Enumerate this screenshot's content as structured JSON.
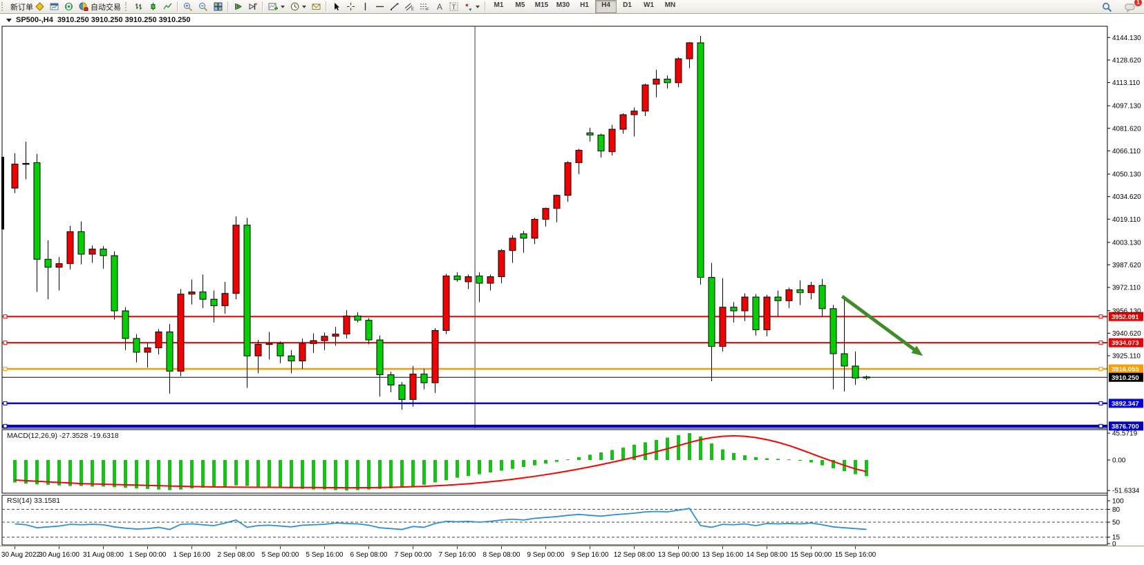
{
  "toolbar": {
    "new_order_label": "新订单",
    "autotrade_label": "自动交易",
    "timeframes": [
      "M1",
      "M5",
      "M15",
      "M30",
      "H1",
      "H4",
      "D1",
      "W1",
      "MN"
    ],
    "active_timeframe": "H4",
    "chat_badge_count": "1",
    "icons": [
      "diamond-icon",
      "new-chart-icon",
      "signal-icon",
      "autotrade-icon",
      "bar-chart-style-icon",
      "candlestick-style-icon",
      "line-chart-style-icon",
      "zoom-in-icon",
      "zoom-out-icon",
      "tile-windows-icon",
      "step-forward-icon",
      "step-end-icon",
      "add-indicator-icon",
      "periods-clock-icon",
      "templates-icon",
      "cursor-icon",
      "crosshair-icon",
      "vertical-line-icon",
      "horizontal-line-icon",
      "trendline-icon",
      "equidistant-channel-icon",
      "fibonacci-icon",
      "text-icon",
      "text-label-icon",
      "arrows-icon",
      "search-icon",
      "chat-icon"
    ]
  },
  "chart": {
    "title_symbol": "SP500-,H4",
    "title_quotes": "3910.250 3910.250 3910.250 3910.250"
  },
  "chart_data": {
    "type": "candlestick",
    "symbol": "SP500-",
    "timeframe": "H4",
    "note": "Chinese color convention: red = bullish (close>=open), green = bearish",
    "bull_color": "#f20000",
    "bear_color": "#00cf00",
    "ylim": [
      3875.1,
      4150.9
    ],
    "x_labels": [
      "30 Aug 2022",
      "30 Aug 16:00",
      "31 Aug 08:00",
      "1 Sep 00:00",
      "1 Sep 16:00",
      "2 Sep 08:00",
      "5 Sep 00:00",
      "5 Sep 16:00",
      "6 Sep 08:00",
      "7 Sep 00:00",
      "7 Sep 16:00",
      "8 Sep 08:00",
      "9 Sep 00:00",
      "9 Sep 16:00",
      "12 Sep 08:00",
      "13 Sep 00:00",
      "13 Sep 16:00",
      "14 Sep 08:00",
      "15 Sep 00:00",
      "15 Sep 16:00"
    ],
    "x_label_bars": [
      0,
      4,
      8,
      12,
      16,
      20,
      24,
      28,
      32,
      36,
      40,
      44,
      48,
      52,
      56,
      60,
      64,
      68,
      72,
      76
    ],
    "candles": [
      [
        4040.5,
        4064.5,
        4037.0,
        4057.0
      ],
      [
        4057.0,
        4072.5,
        4046.5,
        4057.5
      ],
      [
        4058.0,
        4064.0,
        3969.0,
        3991.5
      ],
      [
        3991.5,
        4004.5,
        3964.0,
        3986.0
      ],
      [
        3986.0,
        3993.0,
        3970.0,
        3988.5
      ],
      [
        3988.5,
        4014.5,
        3984.5,
        4010.5
      ],
      [
        4010.5,
        4017.5,
        3988.0,
        3995.0
      ],
      [
        3995.0,
        4001.0,
        3989.0,
        3998.5
      ],
      [
        3998.5,
        4000.5,
        3985.0,
        3994.0
      ],
      [
        3994.0,
        3997.0,
        3950.0,
        3956.0
      ],
      [
        3956.0,
        3958.5,
        3929.0,
        3937.0
      ],
      [
        3937.0,
        3940.0,
        3920.5,
        3927.5
      ],
      [
        3927.5,
        3934.0,
        3917.0,
        3930.5
      ],
      [
        3930.5,
        3943.5,
        3926.0,
        3941.5
      ],
      [
        3941.5,
        3947.0,
        3899.0,
        3914.5
      ],
      [
        3914.5,
        3971.0,
        3911.0,
        3967.5
      ],
      [
        3967.5,
        3977.5,
        3960.5,
        3969.0
      ],
      [
        3969.0,
        3981.0,
        3958.0,
        3964.0
      ],
      [
        3964.0,
        3970.0,
        3948.0,
        3959.5
      ],
      [
        3959.5,
        3976.0,
        3954.0,
        3968.0
      ],
      [
        3968.0,
        4021.0,
        3964.0,
        4015.0
      ],
      [
        4015.0,
        4020.0,
        3903.0,
        3925.0
      ],
      [
        3925.0,
        3936.0,
        3913.0,
        3933.0
      ],
      [
        3933.0,
        3941.5,
        3922.5,
        3933.5
      ],
      [
        3933.5,
        3935.0,
        3920.0,
        3925.0
      ],
      [
        3925.0,
        3929.0,
        3913.0,
        3921.5
      ],
      [
        3921.5,
        3937.0,
        3916.0,
        3933.5
      ],
      [
        3933.5,
        3940.5,
        3927.0,
        3935.5
      ],
      [
        3935.5,
        3941.0,
        3929.0,
        3938.5
      ],
      [
        3938.5,
        3945.0,
        3932.0,
        3940.0
      ],
      [
        3940.0,
        3956.5,
        3937.0,
        3952.5
      ],
      [
        3952.5,
        3955.0,
        3948.0,
        3949.5
      ],
      [
        3949.5,
        3951.0,
        3933.0,
        3936.0
      ],
      [
        3936.0,
        3939.0,
        3897.0,
        3912.0
      ],
      [
        3912.0,
        3914.0,
        3900.0,
        3905.0
      ],
      [
        3905.0,
        3907.0,
        3888.0,
        3895.0
      ],
      [
        3895.0,
        3918.0,
        3890.0,
        3912.5
      ],
      [
        3912.5,
        3916.0,
        3902.0,
        3906.5
      ],
      [
        3906.5,
        3944.0,
        3899.5,
        3942.5
      ],
      [
        3942.5,
        3981.5,
        3940.0,
        3980.0
      ],
      [
        3980.0,
        3982.5,
        3976.0,
        3977.5
      ],
      [
        3976.0,
        3981.0,
        3971.0,
        3979.5
      ],
      [
        3980.0,
        3982.5,
        3962.0,
        3975.0
      ],
      [
        3975.0,
        3981.0,
        3970.0,
        3979.5
      ],
      [
        3979.5,
        3998.5,
        3975.0,
        3997.5
      ],
      [
        3997.5,
        4008.0,
        3989.0,
        4006.0
      ],
      [
        4009.0,
        4011.0,
        3996.0,
        4006.0
      ],
      [
        4006.0,
        4020.0,
        4002.0,
        4019.0
      ],
      [
        4019.0,
        4027.0,
        4014.0,
        4026.5
      ],
      [
        4026.5,
        4036.0,
        4017.0,
        4035.5
      ],
      [
        4035.5,
        4059.0,
        4031.0,
        4058.0
      ],
      [
        4058.0,
        4067.5,
        4050.0,
        4066.5
      ],
      [
        4078.5,
        4082.0,
        4072.5,
        4077.0
      ],
      [
        4077.0,
        4078.0,
        4061.5,
        4066.0
      ],
      [
        4065.5,
        4084.0,
        4063.0,
        4081.0
      ],
      [
        4081.0,
        4092.0,
        4078.0,
        4091.0
      ],
      [
        4091.0,
        4096.0,
        4076.0,
        4093.5
      ],
      [
        4093.5,
        4112.5,
        4090.0,
        4111.5
      ],
      [
        4112.0,
        4122.0,
        4103.0,
        4115.5
      ],
      [
        4115.5,
        4118.0,
        4109.0,
        4113.0
      ],
      [
        4113.0,
        4130.5,
        4110.0,
        4129.5
      ],
      [
        4129.5,
        4141.0,
        4123.0,
        4140.5
      ],
      [
        4140.5,
        4145.2,
        3974.0,
        3979.0
      ],
      [
        3979.0,
        3989.0,
        3907.5,
        3931.5
      ],
      [
        3931.5,
        3978.5,
        3928.0,
        3958.5
      ],
      [
        3958.5,
        3962.0,
        3948.0,
        3956.0
      ],
      [
        3956.0,
        3968.0,
        3949.0,
        3965.5
      ],
      [
        3965.5,
        3967.5,
        3939.0,
        3943.0
      ],
      [
        3943.0,
        3967.0,
        3938.5,
        3965.5
      ],
      [
        3965.5,
        3970.0,
        3952.0,
        3963.0
      ],
      [
        3963.0,
        3972.0,
        3958.0,
        3970.5
      ],
      [
        3970.5,
        3977.0,
        3960.0,
        3968.5
      ],
      [
        3968.5,
        3976.0,
        3964.0,
        3973.5
      ],
      [
        3973.5,
        3978.0,
        3952.0,
        3957.5
      ],
      [
        3957.5,
        3960.0,
        3902.0,
        3926.5
      ],
      [
        3926.5,
        3964.0,
        3900.5,
        3918.0
      ],
      [
        3918.0,
        3928.0,
        3905.0,
        3909.8
      ],
      [
        3910.5,
        3911.5,
        3908.5,
        3910.25
      ]
    ],
    "left_edge_bar": {
      "high": 4062,
      "low": 4012
    },
    "price_axis": {
      "ticks": [
        "4144.130",
        "4128.620",
        "4113.110",
        "4097.130",
        "4081.620",
        "4066.110",
        "4050.130",
        "4034.620",
        "4019.110",
        "4003.130",
        "3987.620",
        "3972.110",
        "3956.130",
        "3940.620",
        "3925.110"
      ],
      "tick_values": [
        4144.13,
        4128.62,
        4113.11,
        4097.13,
        4081.62,
        4066.11,
        4050.13,
        4034.62,
        4019.11,
        4003.13,
        3987.62,
        3972.11,
        3956.13,
        3940.62,
        3925.11
      ]
    },
    "hlines": [
      {
        "price": 3952.091,
        "label": "3952.091",
        "color": "#f50000",
        "width": 2,
        "label_bg": "#e80000",
        "handles": true
      },
      {
        "price": 3934.073,
        "label": "3934.073",
        "color": "#f50000",
        "width": 2,
        "label_bg": "#e80000",
        "handles": true
      },
      {
        "price": 3916.055,
        "label": "3916.055",
        "color": "#ff9d00",
        "width": 2.5,
        "label_bg": "#ff9d00",
        "handles": true
      },
      {
        "price": 3910.25,
        "label": "3910.250",
        "color": "#000000",
        "width": 1,
        "label_bg": "#000000",
        "handles": false
      },
      {
        "price": 3892.347,
        "label": "3892.347",
        "color": "#0000e6",
        "width": 2.5,
        "label_bg": "#0000e6",
        "handles": true
      },
      {
        "price": 3876.7,
        "label": "3876.700",
        "color": "#0000c8",
        "width": 4,
        "label_bg": "#0000c8",
        "handles": true
      }
    ],
    "vline": {
      "bar_index": 41.6
    },
    "arrow": {
      "start": {
        "bar": 74.8,
        "price": 3966
      },
      "end": {
        "bar": 82.1,
        "price": 3925
      },
      "color": "#3f8c28"
    },
    "macd": {
      "label": "MACD(12,26,9)",
      "values": "-27.3528 -19.6318",
      "main_value": -27.3528,
      "signal_value": -19.6318,
      "scale_ticks": [
        "45.5719",
        "0.00",
        "-51.6334"
      ],
      "scale_values": [
        45.5719,
        0,
        -51.6334
      ],
      "histogram": [
        -38,
        -40,
        -41,
        -42,
        -43,
        -44,
        -44,
        -45,
        -45,
        -46,
        -47,
        -48,
        -49,
        -50,
        -51,
        -50,
        -48,
        -47,
        -46,
        -45,
        -43,
        -44,
        -45,
        -46,
        -47,
        -48,
        -49,
        -50,
        -50,
        -51,
        -51.6,
        -51,
        -50,
        -49,
        -48,
        -47,
        -45,
        -42,
        -38,
        -34,
        -30,
        -27,
        -24,
        -21,
        -18,
        -15,
        -12,
        -9,
        -6,
        -3,
        1,
        5,
        9,
        13,
        17,
        21,
        26,
        30,
        34,
        38,
        42,
        45.57,
        40,
        28,
        18,
        12,
        8,
        5,
        3,
        2,
        1,
        0,
        -4,
        -9,
        -14,
        -19,
        -24,
        -27.35
      ],
      "signal": [
        -34,
        -35,
        -36,
        -37,
        -38,
        -39,
        -40,
        -40.5,
        -41,
        -41.5,
        -42,
        -42.5,
        -43,
        -43.5,
        -44,
        -44.5,
        -45,
        -45.3,
        -45.6,
        -45.8,
        -46,
        -46.1,
        -46.2,
        -46.3,
        -46.4,
        -46.5,
        -46.5,
        -46.6,
        -46.7,
        -46.8,
        -47,
        -47,
        -46.8,
        -46.5,
        -46.2,
        -45.8,
        -45.3,
        -44.6,
        -43.8,
        -42.8,
        -41.6,
        -40.2,
        -38.6,
        -36.8,
        -34.8,
        -32.6,
        -30.2,
        -27.6,
        -24.8,
        -21.8,
        -18.6,
        -15.2,
        -11.6,
        -7.8,
        -3.8,
        0.4,
        4.8,
        9.4,
        14.2,
        19.2,
        24.4,
        29.8,
        34.5,
        38,
        40.2,
        41,
        40.2,
        38,
        34.5,
        30,
        24.5,
        18,
        11,
        4,
        -2.5,
        -9,
        -15,
        -19.63
      ],
      "hist_color": "#00cf00",
      "signal_color": "#ff0000"
    },
    "rsi": {
      "label": "RSI(14)",
      "value": "33.1581",
      "current": 33.1581,
      "scale_ticks": [
        "100",
        "80",
        "50",
        "15",
        "0"
      ],
      "scale_values": [
        100,
        80,
        50,
        15,
        0
      ],
      "levels": [
        80,
        50,
        15
      ],
      "values": [
        46,
        44,
        37,
        39,
        41,
        45,
        44,
        45,
        44,
        39,
        36,
        34,
        35,
        38,
        33,
        45,
        46,
        44,
        42,
        48,
        55,
        38,
        42,
        43,
        41,
        39,
        43,
        44,
        45,
        48,
        47,
        46,
        43,
        37,
        35,
        33,
        40,
        38,
        47,
        52,
        51,
        52,
        50,
        52,
        55,
        57,
        55,
        59,
        61,
        63,
        66,
        68,
        66,
        64,
        67,
        69,
        71,
        74,
        75,
        74,
        78,
        82,
        42,
        38,
        45,
        44,
        46,
        42,
        47,
        46,
        47,
        46,
        48,
        44,
        39,
        37,
        35,
        33.16
      ],
      "line_color": "#2f8fd5"
    }
  }
}
